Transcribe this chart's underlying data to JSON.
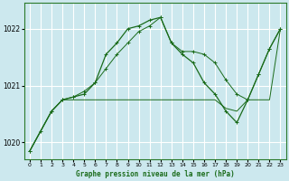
{
  "title": "Graphe pression niveau de la mer (hPa)",
  "background_color": "#cce8ee",
  "grid_color": "#ffffff",
  "line_color": "#1a6b1a",
  "ylim": [
    1019.7,
    1022.45
  ],
  "yticks": [
    1020,
    1021,
    1022
  ],
  "xlim": [
    -0.5,
    23.5
  ],
  "x_ticks": [
    0,
    1,
    2,
    3,
    4,
    5,
    6,
    7,
    8,
    9,
    10,
    11,
    12,
    13,
    14,
    15,
    16,
    17,
    18,
    19,
    20,
    21,
    22,
    23
  ],
  "series_peak": {
    "x": [
      0,
      1,
      2,
      3,
      4,
      5,
      6,
      7,
      8,
      9,
      10,
      11,
      12,
      13,
      14,
      15,
      16,
      17,
      18,
      19,
      20,
      21,
      22,
      23
    ],
    "y": [
      1019.85,
      1020.2,
      1020.55,
      1020.75,
      1020.8,
      1020.85,
      1021.05,
      1021.55,
      1021.75,
      1022.0,
      1022.05,
      1022.15,
      1022.2,
      1021.75,
      1021.55,
      1021.4,
      1021.05,
      1020.85,
      1020.55,
      1020.35,
      1020.75,
      1021.2,
      1021.65,
      1022.0
    ]
  },
  "series_flat": {
    "x": [
      0,
      1,
      2,
      3,
      4,
      5,
      6,
      7,
      8,
      9,
      10,
      11,
      12,
      13,
      14,
      15,
      16,
      17,
      18,
      19,
      20,
      21,
      22,
      23
    ],
    "y": [
      1019.85,
      1020.2,
      1020.55,
      1020.75,
      1020.75,
      1020.75,
      1020.75,
      1020.75,
      1020.75,
      1020.75,
      1020.75,
      1020.75,
      1020.75,
      1020.75,
      1020.75,
      1020.75,
      1020.75,
      1020.75,
      1020.6,
      1020.55,
      1020.75,
      1020.75,
      1020.75,
      1022.0
    ]
  },
  "series_diagonal": {
    "x": [
      0,
      2,
      3,
      4,
      5,
      6,
      7,
      8,
      9,
      10,
      11,
      12,
      13,
      14,
      15,
      16,
      17,
      18,
      19,
      20,
      21,
      22,
      23
    ],
    "y": [
      1019.85,
      1020.55,
      1020.75,
      1020.8,
      1020.9,
      1021.05,
      1021.3,
      1021.55,
      1021.75,
      1021.95,
      1022.05,
      1022.2,
      1021.75,
      1021.6,
      1021.6,
      1021.55,
      1021.4,
      1021.1,
      1020.85,
      1020.75,
      1021.2,
      1021.65,
      1022.0
    ]
  }
}
